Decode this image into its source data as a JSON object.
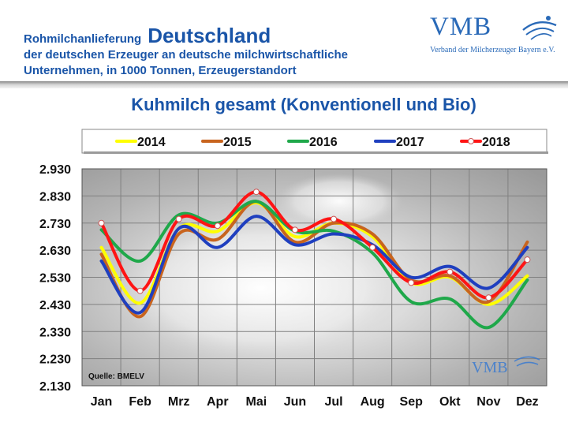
{
  "header": {
    "line1_small": "Rohmilchanlieferung",
    "line1_big": "Deutschland",
    "line2": "der deutschen Erzeuger an deutsche milchwirtschaftliche",
    "line3": "Unternehmen, in 1000 Tonnen, Erzeugerstandort"
  },
  "logo": {
    "text": "VMB",
    "subtitle": "Verband der Milcherzeuger Bayern e.V."
  },
  "chart_data": {
    "type": "line",
    "title": "Kuhmilch gesamt (Konventionell und Bio)",
    "source": "Quelle: BMELV",
    "watermark": "VMB",
    "categories": [
      "Jan",
      "Feb",
      "Mrz",
      "Apr",
      "Mai",
      "Jun",
      "Jul",
      "Aug",
      "Sep",
      "Okt",
      "Nov",
      "Dez"
    ],
    "yticks": [
      "2.930",
      "2.830",
      "2.730",
      "2.630",
      "2.530",
      "2.430",
      "2.330",
      "2.230",
      "2.130"
    ],
    "ylim": [
      2130,
      2930
    ],
    "legend_position": "top",
    "series": [
      {
        "name": "2014",
        "color": "#ffff00",
        "markers": false,
        "values": [
          2640,
          2435,
          2710,
          2700,
          2805,
          2680,
          2730,
          2680,
          2510,
          2530,
          2430,
          2535
        ]
      },
      {
        "name": "2015",
        "color": "#c8641e",
        "markers": false,
        "values": [
          2615,
          2385,
          2690,
          2670,
          2810,
          2660,
          2730,
          2690,
          2520,
          2535,
          2440,
          2660
        ]
      },
      {
        "name": "2016",
        "color": "#1fa84a",
        "markers": false,
        "values": [
          2705,
          2590,
          2760,
          2730,
          2810,
          2700,
          2700,
          2620,
          2440,
          2450,
          2345,
          2520
        ]
      },
      {
        "name": "2017",
        "color": "#1f3fbf",
        "markers": false,
        "values": [
          2590,
          2400,
          2710,
          2640,
          2755,
          2650,
          2690,
          2650,
          2530,
          2570,
          2490,
          2640
        ]
      },
      {
        "name": "2018",
        "color": "#ff1414",
        "markers": true,
        "values": [
          2730,
          2480,
          2745,
          2720,
          2845,
          2705,
          2745,
          2640,
          2510,
          2550,
          2455,
          2595
        ]
      }
    ]
  }
}
